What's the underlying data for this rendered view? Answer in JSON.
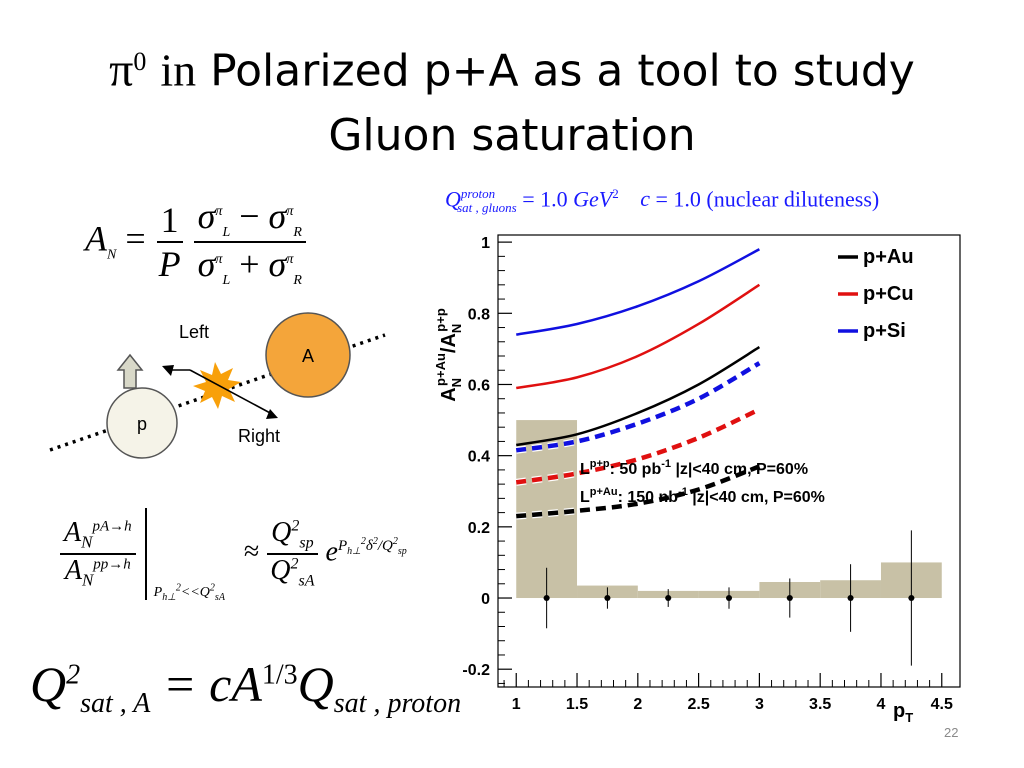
{
  "slide": {
    "title_pi": "π",
    "title_pi_sup": "0",
    "title_in": "in",
    "title_line1": "Polarized p+A as a tool to study",
    "title_line2": "Gluon saturation",
    "slide_number": "22"
  },
  "equations": {
    "an_lhs": "A",
    "an_lhs_sub": "N",
    "eq": "=",
    "one": "1",
    "p": "P",
    "sigma": "σ",
    "pi_sup": "π",
    "L": "L",
    "R": "R",
    "minus": "−",
    "plus": "+",
    "ratio_num_A": "A",
    "ratio_num_sub": "N",
    "ratio_num_sup": "pA→h",
    "ratio_den_sup": "pp→h",
    "ratio_cond": "P",
    "ratio_cond_sub": "h⊥",
    "ratio_cond_sup": "2",
    "ratio_cond_rel": "<<Q",
    "ratio_cond_sub2": "sA",
    "approx": "≈",
    "q": "Q",
    "sq": "2",
    "sp": "sp",
    "sA": "sA",
    "e": "e",
    "exp_text": "P",
    "exp_sub": "h⊥",
    "exp_mid": "δ",
    "exp_rest": "/Q",
    "qsat_Q": "Q",
    "qsat_sup": "2",
    "qsat_sub": "sat , A",
    "qsat_rhs": "= cA",
    "qsat_rhs_sup": "1/3",
    "qsat_rhs_Q": "Q",
    "qsat_rhs_sub": "sat , proton"
  },
  "diagram": {
    "left_label": "Left",
    "right_label": "Right",
    "nucleus_label": "A",
    "proton_label": "p",
    "nucleus_color": "#f4a53a",
    "burst_color": "#f8a00a"
  },
  "header_note": {
    "Q": "Q",
    "Q_sup": "proton",
    "Q_sub": "sat , gluons",
    "eq1": " = 1.0 ",
    "gev": "GeV",
    "gev_sup": "2",
    "c_text": "c",
    "eq2": " = 1.0 (nuclear diluteness)"
  },
  "chart_data": {
    "type": "line",
    "title": "",
    "ylabel": "A_N^{p+Au}/A_N^{p+p}",
    "ylabel_main": "A",
    "ylabel_sub": "N",
    "ylabel_sup": "p+Au",
    "ylabel_slash": "/A",
    "ylabel_sub2": "N",
    "ylabel_sup2": "p+p",
    "xlabel": "p",
    "xlabel_sub": "T",
    "xlim": [
      0.85,
      4.65
    ],
    "ylim": [
      -0.25,
      1.02
    ],
    "x_ticks": [
      "1",
      "1.5",
      "2",
      "2.5",
      "3",
      "3.5",
      "4",
      "4.5"
    ],
    "x_tick_values": [
      1,
      1.5,
      2,
      2.5,
      3,
      3.5,
      4,
      4.5
    ],
    "y_ticks": [
      "-0.2",
      "0",
      "0.2",
      "0.4",
      "0.6",
      "0.8",
      "1"
    ],
    "y_tick_values": [
      -0.2,
      0,
      0.2,
      0.4,
      0.6,
      0.8,
      1
    ],
    "legend_position": "top-right",
    "legend": [
      {
        "label": "p+Au",
        "color": "#000000"
      },
      {
        "label": "p+Cu",
        "color": "#e01010"
      },
      {
        "label": "p+Si",
        "color": "#1010e0"
      }
    ],
    "series": [
      {
        "name": "p+Si",
        "color": "#1010e0",
        "x": [
          1.0,
          1.5,
          2.0,
          2.5,
          3.0
        ],
        "y": [
          0.74,
          0.77,
          0.82,
          0.89,
          0.98
        ],
        "dashed": false
      },
      {
        "name": "p+Cu",
        "color": "#e01010",
        "x": [
          1.0,
          1.5,
          2.0,
          2.5,
          3.0
        ],
        "y": [
          0.59,
          0.62,
          0.68,
          0.77,
          0.88
        ],
        "dashed": false
      },
      {
        "name": "p+Au",
        "color": "#000000",
        "x": [
          1.0,
          1.5,
          2.0,
          2.5,
          3.0
        ],
        "y": [
          0.43,
          0.46,
          0.52,
          0.6,
          0.705
        ],
        "dashed": false
      },
      {
        "name": "p+Si",
        "color": "#1010e0",
        "x": [
          1.0,
          1.5,
          2.0,
          2.5,
          3.0
        ],
        "y": [
          0.415,
          0.44,
          0.49,
          0.56,
          0.66
        ],
        "dashed": true
      },
      {
        "name": "p+Cu",
        "color": "#e01010",
        "x": [
          1.0,
          1.5,
          2.0,
          2.5,
          3.0
        ],
        "y": [
          0.325,
          0.35,
          0.39,
          0.45,
          0.53
        ],
        "dashed": true
      },
      {
        "name": "p+Au",
        "color": "#000000",
        "x": [
          1.0,
          1.5,
          2.0,
          2.5,
          3.0
        ],
        "y": [
          0.23,
          0.245,
          0.265,
          0.305,
          0.37
        ],
        "dashed": true
      }
    ],
    "bands": {
      "color": "#c8c1a6",
      "bins": [
        {
          "x0": 1.0,
          "x1": 1.5,
          "h": 0.5
        },
        {
          "x0": 1.5,
          "x1": 2.0,
          "h": 0.035
        },
        {
          "x0": 2.0,
          "x1": 2.5,
          "h": 0.02
        },
        {
          "x0": 2.5,
          "x1": 3.0,
          "h": 0.02
        },
        {
          "x0": 3.0,
          "x1": 3.5,
          "h": 0.045
        },
        {
          "x0": 3.5,
          "x1": 4.0,
          "h": 0.05
        },
        {
          "x0": 4.0,
          "x1": 4.5,
          "h": 0.1
        }
      ]
    },
    "points": [
      {
        "x": 1.25,
        "y": 0.0,
        "err": 0.085
      },
      {
        "x": 1.75,
        "y": 0.0,
        "err": 0.03
      },
      {
        "x": 2.25,
        "y": 0.0,
        "err": 0.025
      },
      {
        "x": 2.75,
        "y": 0.0,
        "err": 0.03
      },
      {
        "x": 3.25,
        "y": 0.0,
        "err": 0.055
      },
      {
        "x": 3.75,
        "y": 0.0,
        "err": 0.095
      },
      {
        "x": 4.25,
        "y": 0.0,
        "err": 0.19
      }
    ],
    "annotations": [
      {
        "prefix": "L",
        "sup": "p+p",
        "text": ":    50 pb",
        "sup2": "-1",
        "rest": "  |z|<40 cm, P=60%"
      },
      {
        "prefix": "L",
        "sup": "p+Au",
        "text": ": 150 nb",
        "sup2": "-1",
        "rest": " |z|<40 cm, P=60%"
      }
    ]
  }
}
